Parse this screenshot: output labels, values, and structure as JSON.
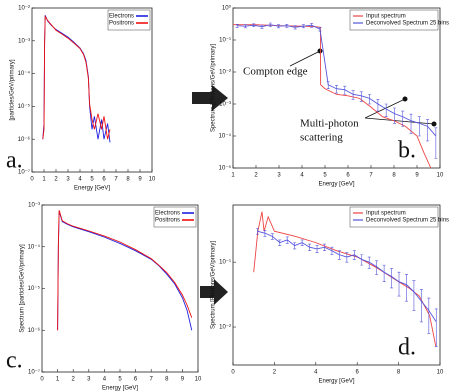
{
  "chart_data": [
    {
      "type": "line",
      "xlabel": "Energy [GeV]",
      "ylabel": "[particles/GeV/primary]",
      "panel_label": "a.",
      "log_y": true,
      "legend": "upper right",
      "xlim": [
        0,
        10
      ],
      "xticks": [
        0,
        1,
        2,
        3,
        4,
        5,
        6,
        7,
        8,
        9,
        10
      ],
      "ylim": [
        1e-07,
        0.01
      ],
      "yticks": [
        {
          "value": 1e-07,
          "label": "10⁻⁷"
        },
        {
          "value": 1e-06,
          "label": "10⁻⁶"
        },
        {
          "value": 1e-05,
          "label": "10⁻⁵"
        },
        {
          "value": 0.0001,
          "label": "10⁻⁴"
        },
        {
          "value": 0.001,
          "label": "10⁻³"
        },
        {
          "value": 0.01,
          "label": "10⁻²"
        }
      ],
      "series": [
        {
          "name": "Electrons",
          "color": "#1f1fe0",
          "x": [
            0.9,
            1,
            1.05,
            1.1,
            1.3,
            1.6,
            2,
            2.5,
            3,
            3.5,
            4,
            4.3,
            4.5,
            4.7,
            4.8,
            5,
            5.2,
            5.5,
            5.8,
            6,
            6.3,
            6.5
          ],
          "values": [
            1e-06,
            3e-06,
            0.001,
            0.006,
            0.004,
            0.003,
            0.0022,
            0.0017,
            0.0013,
            0.0009,
            0.0006,
            0.0004,
            0.00025,
            8e-05,
            1e-05,
            2e-06,
            5e-06,
            1e-06,
            4e-06,
            1e-06,
            3e-06,
            8e-07
          ]
        },
        {
          "name": "Positrons",
          "color": "#ee1111",
          "x": [
            0.9,
            1,
            1.05,
            1.1,
            1.3,
            1.6,
            2,
            2.5,
            3,
            3.5,
            4,
            4.3,
            4.5,
            4.7,
            4.8,
            5,
            5.2,
            5.5,
            5.8,
            6,
            6.3,
            6.5
          ],
          "values": [
            1e-06,
            2e-06,
            0.0008,
            0.0055,
            0.0042,
            0.0031,
            0.0021,
            0.0016,
            0.0012,
            0.00085,
            0.00058,
            0.00038,
            0.00022,
            7e-05,
            1.2e-05,
            4e-06,
            2e-06,
            6e-06,
            2e-06,
            5e-06,
            1e-06,
            2e-06
          ]
        }
      ]
    },
    {
      "type": "line",
      "xlabel": "Energy [GeV]",
      "ylabel": "Spectrum [Photons/GeV/primary]",
      "panel_label": "b.",
      "log_y": true,
      "legend": "upper right",
      "annotations": [
        "Compton edge",
        "Multi-photon",
        "scattering"
      ],
      "xlim": [
        1,
        10
      ],
      "xticks": [
        1,
        2,
        3,
        4,
        5,
        6,
        7,
        8,
        9,
        10
      ],
      "ylim": [
        1e-05,
        1
      ],
      "yticks": [
        {
          "value": 1e-05,
          "label": "10⁻⁵"
        },
        {
          "value": 0.0001,
          "label": "10⁻⁴"
        },
        {
          "value": 0.001,
          "label": "10⁻³"
        },
        {
          "value": 0.01,
          "label": "10⁻²"
        },
        {
          "value": 0.1,
          "label": "10⁻¹"
        },
        {
          "value": 1,
          "label": "10⁰"
        }
      ],
      "series": [
        {
          "name": "Input spectrum",
          "color": "#ee4444",
          "x": [
            1,
            1.5,
            2,
            3,
            4,
            4.6,
            4.8,
            4.81,
            5,
            5.5,
            6,
            6.5,
            7,
            7.5,
            8,
            8.5,
            9,
            9.3,
            9.6
          ],
          "values": [
            0.3,
            0.3,
            0.3,
            0.28,
            0.27,
            0.26,
            0.25,
            0.004,
            0.003,
            0.002,
            0.0018,
            0.0015,
            0.0008,
            0.0004,
            0.0003,
            0.0002,
            0.0001,
            3e-05,
            1e-05
          ]
        },
        {
          "name": "Deconvolved Spectrum 25 bins",
          "color": "#5555dd",
          "x": [
            1.18,
            1.54,
            1.9,
            2.26,
            2.62,
            2.98,
            3.34,
            3.7,
            4.06,
            4.42,
            4.78,
            5.14,
            5.5,
            5.86,
            6.22,
            6.58,
            6.94,
            7.3,
            7.66,
            8.02,
            8.38,
            8.74,
            9.1,
            9.46,
            9.82
          ],
          "values": [
            0.28,
            0.27,
            0.29,
            0.26,
            0.3,
            0.27,
            0.28,
            0.25,
            0.27,
            0.29,
            0.22,
            0.004,
            0.003,
            0.0028,
            0.002,
            0.0018,
            0.0015,
            0.001,
            0.0007,
            0.0005,
            0.0004,
            0.0003,
            0.00025,
            0.0002,
            0.0001
          ],
          "errors": [
            0.03,
            0.03,
            0.03,
            0.03,
            0.04,
            0.03,
            0.03,
            0.03,
            0.03,
            0.04,
            0.03,
            0.001,
            0.0008,
            0.0008,
            0.0006,
            0.0006,
            0.0005,
            0.0004,
            0.0003,
            0.00025,
            0.0002,
            0.00018,
            0.00015,
            0.00013,
            8e-05
          ]
        }
      ]
    },
    {
      "type": "line",
      "xlabel": "Energy [GeV]",
      "ylabel": "Spectrum [particles/GeV/primary]",
      "panel_label": "c.",
      "log_y": true,
      "legend": "upper right",
      "xlim": [
        0,
        10
      ],
      "xticks": [
        0,
        1,
        2,
        3,
        4,
        5,
        6,
        7,
        8,
        9,
        10
      ],
      "ylim": [
        1e-07,
        0.001
      ],
      "yticks": [
        {
          "value": 1e-07,
          "label": "10⁻⁷"
        },
        {
          "value": 1e-06,
          "label": "10⁻⁶"
        },
        {
          "value": 1e-05,
          "label": "10⁻⁵"
        },
        {
          "value": 0.0001,
          "label": "10⁻⁴"
        },
        {
          "value": 0.001,
          "label": "10⁻³"
        }
      ],
      "series": [
        {
          "name": "Electrons",
          "color": "#1f1fe0",
          "x": [
            1,
            1.05,
            1.1,
            1.3,
            1.6,
            2,
            3,
            4,
            5,
            6,
            7,
            7.5,
            8,
            8.5,
            9,
            9.3,
            9.6
          ],
          "values": [
            1e-06,
            0.0001,
            0.0007,
            0.0004,
            0.00035,
            0.0003,
            0.00023,
            0.00017,
            0.00012,
            8e-05,
            5e-05,
            3.5e-05,
            2.2e-05,
            1.3e-05,
            6e-06,
            3e-06,
            1e-06
          ]
        },
        {
          "name": "Positrons",
          "color": "#ee1111",
          "x": [
            1,
            1.05,
            1.1,
            1.3,
            1.6,
            2,
            3,
            4,
            5,
            6,
            7,
            7.5,
            8,
            8.5,
            9,
            9.3,
            9.6
          ],
          "values": [
            1e-06,
            0.00012,
            0.00075,
            0.00042,
            0.00036,
            0.00031,
            0.00024,
            0.00018,
            0.00013,
            8.5e-05,
            5.2e-05,
            3.6e-05,
            2.4e-05,
            1.4e-05,
            7e-06,
            4e-06,
            2e-06
          ]
        }
      ]
    },
    {
      "type": "line",
      "xlabel": "Energy [GeV]",
      "ylabel": "Spectrum [Photons/GeV/primary]",
      "panel_label": "d.",
      "log_y": true,
      "legend": "upper right",
      "xlim": [
        0,
        10
      ],
      "xticks": [
        0,
        2,
        4,
        6,
        8,
        10
      ],
      "ylim": [
        0.0026,
        0.76
      ],
      "yticks": [
        {
          "value": 0.01,
          "label": "10⁻²"
        },
        {
          "value": 0.1,
          "label": "10⁻¹"
        }
      ],
      "series": [
        {
          "name": "Input spectrum",
          "color": "#ee4444",
          "x": [
            1,
            1.2,
            1.4,
            1.5,
            1.7,
            2,
            3,
            4,
            5,
            6,
            7,
            8,
            8.5,
            9,
            9.5,
            9.8
          ],
          "values": [
            0.07,
            0.3,
            0.6,
            0.3,
            0.5,
            0.3,
            0.25,
            0.2,
            0.15,
            0.12,
            0.08,
            0.05,
            0.04,
            0.03,
            0.015,
            0.005
          ]
        },
        {
          "name": "Deconvolved Spectrum 25 bins",
          "color": "#5555dd",
          "x": [
            1.18,
            1.54,
            1.9,
            2.26,
            2.62,
            2.98,
            3.34,
            3.7,
            4.06,
            4.42,
            4.78,
            5.14,
            5.5,
            5.86,
            6.22,
            6.58,
            6.94,
            7.3,
            7.66,
            8.02,
            8.38,
            8.74,
            9.1,
            9.46,
            9.82
          ],
          "values": [
            0.3,
            0.28,
            0.25,
            0.2,
            0.22,
            0.18,
            0.2,
            0.17,
            0.16,
            0.17,
            0.15,
            0.13,
            0.12,
            0.13,
            0.11,
            0.1,
            0.085,
            0.07,
            0.06,
            0.05,
            0.045,
            0.035,
            0.025,
            0.018,
            0.012
          ],
          "errors": [
            0.03,
            0.03,
            0.025,
            0.02,
            0.025,
            0.02,
            0.02,
            0.02,
            0.02,
            0.02,
            0.02,
            0.02,
            0.02,
            0.02,
            0.02,
            0.02,
            0.02,
            0.02,
            0.02,
            0.02,
            0.02,
            0.017,
            0.013,
            0.01,
            0.007
          ]
        }
      ]
    }
  ]
}
